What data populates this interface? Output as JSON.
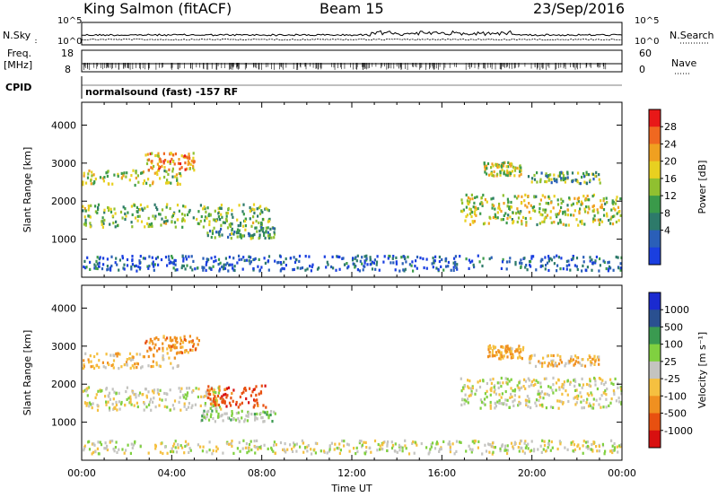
{
  "header": {
    "radar": "King Salmon (fitACF)",
    "beam": "Beam 15",
    "date": "23/Sep/2016"
  },
  "noise_panel": {
    "left_label": "N.Sky",
    "right_label": "N.Search",
    "left_ticks": [
      "10^5",
      "10^0"
    ],
    "right_ticks": [
      "10^5",
      "10^0"
    ]
  },
  "freq_panel": {
    "label_1": "Freq.",
    "label_2": "[MHz]",
    "left_ticks": [
      "18",
      "8"
    ],
    "right_label": "Nave",
    "right_ticks": [
      "60",
      "0"
    ],
    "cpid_label": "CPID",
    "cpid_text": "normalsound (fast) -157 RF"
  },
  "time_axis": {
    "ticks": [
      "00:00",
      "04:00",
      "08:00",
      "12:00",
      "16:00",
      "20:00",
      "00:00"
    ],
    "label": "Time UT"
  },
  "colors": {
    "scale": [
      "#1a3fe0",
      "#2a5fb8",
      "#2d7a6a",
      "#3a9a4a",
      "#90c030",
      "#e8d020",
      "#f0a020",
      "#f06820",
      "#e81818"
    ],
    "velocity_neutral": "#c4c4c0",
    "velocity_neg": [
      "#f5c040",
      "#f09020",
      "#e85010",
      "#d81010"
    ],
    "velocity_pos": [
      "#80d040",
      "#3a9a50",
      "#2a5090",
      "#1a2ad0"
    ]
  },
  "chart_data": [
    {
      "type": "heatmap",
      "title": "Power",
      "ylabel": "Slant Range [km]",
      "xlabel": "Time UT",
      "x_ticks": [
        "00:00",
        "04:00",
        "08:00",
        "12:00",
        "16:00",
        "20:00",
        "00:00"
      ],
      "y_ticks": [
        1000,
        2000,
        3000,
        4000
      ],
      "ylim": [
        0,
        4600
      ],
      "xlim_hours": [
        0,
        24
      ],
      "colorbar": {
        "label": "Power [dB]",
        "ticks": [
          4,
          8,
          12,
          16,
          20,
          24,
          28
        ]
      },
      "echo_regions": [
        {
          "t": [
            0.0,
            8.4
          ],
          "r": [
            1350,
            1950
          ],
          "level": 0.45
        },
        {
          "t": [
            0.0,
            4.4
          ],
          "r": [
            2450,
            2850
          ],
          "level": 0.55
        },
        {
          "t": [
            2.8,
            5.0
          ],
          "r": [
            2850,
            3300
          ],
          "level": 0.7
        },
        {
          "t": [
            5.5,
            8.6
          ],
          "r": [
            1050,
            1350
          ],
          "level": 0.35
        },
        {
          "t": [
            0.0,
            24.0
          ],
          "r": [
            200,
            600
          ],
          "level": 0.15
        },
        {
          "t": [
            16.8,
            24.0
          ],
          "r": [
            1400,
            2200
          ],
          "level": 0.55
        },
        {
          "t": [
            17.8,
            19.6
          ],
          "r": [
            2700,
            3050
          ],
          "level": 0.55
        },
        {
          "t": [
            19.8,
            23.0
          ],
          "r": [
            2500,
            2800
          ],
          "level": 0.4
        }
      ]
    },
    {
      "type": "heatmap",
      "title": "Velocity",
      "ylabel": "Slant Range [km]",
      "xlabel": "Time UT",
      "x_ticks": [
        "00:00",
        "04:00",
        "08:00",
        "12:00",
        "16:00",
        "20:00",
        "00:00"
      ],
      "y_ticks": [
        1000,
        2000,
        3000,
        4000
      ],
      "ylim": [
        0,
        4600
      ],
      "xlim_hours": [
        0,
        24
      ],
      "colorbar": {
        "label": "Velocity [m s⁻¹]",
        "ticks": [
          1000,
          500,
          100,
          25,
          -25,
          -100,
          -500,
          -1000
        ]
      },
      "echo_regions": [
        {
          "t": [
            0.0,
            6.2
          ],
          "r": [
            1350,
            1950
          ],
          "velocity": 0
        },
        {
          "t": [
            0.0,
            4.4
          ],
          "r": [
            2450,
            2850
          ],
          "velocity": -150
        },
        {
          "t": [
            2.8,
            5.2
          ],
          "r": [
            2850,
            3300
          ],
          "velocity": -300
        },
        {
          "t": [
            5.2,
            8.6
          ],
          "r": [
            1050,
            1350
          ],
          "velocity": 100
        },
        {
          "t": [
            5.5,
            8.2
          ],
          "r": [
            1400,
            2000
          ],
          "velocity": -500
        },
        {
          "t": [
            0.0,
            24.0
          ],
          "r": [
            200,
            550
          ],
          "velocity": 0
        },
        {
          "t": [
            16.8,
            24.0
          ],
          "r": [
            1400,
            2200
          ],
          "velocity": 0
        },
        {
          "t": [
            18.0,
            19.6
          ],
          "r": [
            2700,
            3050
          ],
          "velocity": -200
        },
        {
          "t": [
            19.8,
            23.0
          ],
          "r": [
            2500,
            2800
          ],
          "velocity": -150
        }
      ]
    }
  ]
}
